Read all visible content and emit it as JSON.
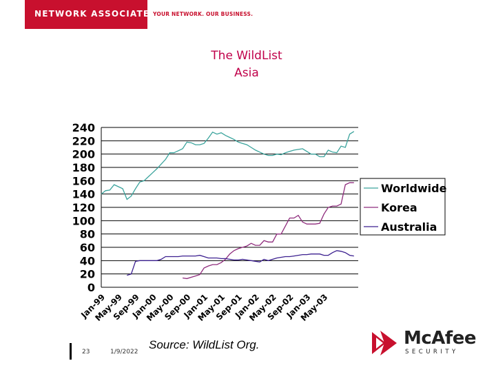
{
  "header": {
    "brand": "NETWORK ASSOCIATES",
    "tagline": "YOUR NETWORK. OUR BUSINESS.",
    "brand_color": "#c8102e"
  },
  "slide": {
    "title_line1": "The WildList",
    "title_line2": "Asia",
    "title_color": "#c0004a"
  },
  "footer": {
    "page_number": "23",
    "date": "1/9/2022",
    "source": "Source: WildList Org.",
    "logo_name": "McAfee",
    "logo_sub": "SECURITY"
  },
  "chart_data": {
    "type": "line",
    "ylim": [
      0,
      240
    ],
    "yticks": [
      0,
      20,
      40,
      60,
      80,
      100,
      120,
      140,
      160,
      180,
      200,
      220,
      240
    ],
    "xlim": [
      "Jan-99",
      "Jan-04"
    ],
    "grid": true,
    "legend_position": "right",
    "x_tick_labels": [
      "Jan-99",
      "May-99",
      "Sep-99",
      "Jan-00",
      "May-00",
      "Sep-00",
      "Jan-01",
      "May-01",
      "Sep-01",
      "Jan-02",
      "May-02",
      "Sep-02",
      "Jan-03",
      "May-03"
    ],
    "series": [
      {
        "name": "Worldwide",
        "color": "#3aa39c",
        "x": [
          "Jan-99",
          "Feb-99",
          "Mar-99",
          "Apr-99",
          "May-99",
          "Jun-99",
          "Jul-99",
          "Aug-99",
          "Sep-99",
          "Oct-99",
          "Nov-99",
          "Dec-99",
          "Jan-00",
          "Feb-00",
          "Mar-00",
          "Apr-00",
          "May-00",
          "Jun-00",
          "Jul-00",
          "Aug-00",
          "Sep-00",
          "Oct-00",
          "Nov-00",
          "Dec-00",
          "Jan-01",
          "Feb-01",
          "Mar-01",
          "Apr-01",
          "May-01",
          "Jun-01",
          "Jul-01",
          "Aug-01",
          "Sep-01",
          "Oct-01",
          "Nov-01",
          "Dec-01",
          "Jan-02",
          "Feb-02",
          "Mar-02",
          "Apr-02",
          "May-02",
          "Jun-02",
          "Jul-02",
          "Aug-02",
          "Sep-02",
          "Oct-02",
          "Nov-02",
          "Dec-02",
          "Jan-03",
          "Feb-03",
          "Mar-03",
          "Apr-03",
          "May-03",
          "Jun-03",
          "Jul-03",
          "Aug-03",
          "Sep-03",
          "Oct-03",
          "Nov-03",
          "Dec-03"
        ],
        "values": [
          140,
          145,
          146,
          154,
          151,
          148,
          132,
          137,
          148,
          158,
          160,
          166,
          172,
          178,
          185,
          192,
          202,
          202,
          205,
          208,
          218,
          217,
          214,
          214,
          216,
          224,
          233,
          230,
          232,
          228,
          225,
          222,
          218,
          216,
          214,
          210,
          206,
          203,
          200,
          198,
          198,
          200,
          199,
          202,
          204,
          206,
          207,
          208,
          204,
          200,
          200,
          196,
          196,
          206,
          203,
          202,
          212,
          210,
          230,
          234
        ]
      },
      {
        "name": "Korea",
        "color": "#8e2b7c",
        "x": [
          "Aug-00",
          "Sep-00",
          "Oct-00",
          "Nov-00",
          "Dec-00",
          "Jan-01",
          "Feb-01",
          "Mar-01",
          "Apr-01",
          "May-01",
          "Jun-01",
          "Jul-01",
          "Aug-01",
          "Sep-01",
          "Oct-01",
          "Nov-01",
          "Dec-01",
          "Jan-02",
          "Feb-02",
          "Mar-02",
          "Apr-02",
          "May-02",
          "Jun-02",
          "Jul-02",
          "Aug-02",
          "Sep-02",
          "Oct-02",
          "Nov-02",
          "Dec-02",
          "Jan-03",
          "Feb-03",
          "Mar-03",
          "Apr-03",
          "May-03",
          "Jun-03",
          "Jul-03",
          "Aug-03",
          "Sep-03",
          "Oct-03",
          "Nov-03",
          "Dec-03"
        ],
        "values": [
          14,
          13,
          15,
          17,
          19,
          29,
          32,
          34,
          34,
          37,
          42,
          50,
          55,
          58,
          60,
          62,
          66,
          63,
          63,
          70,
          68,
          68,
          80,
          80,
          92,
          104,
          104,
          108,
          98,
          95,
          95,
          95,
          96,
          110,
          120,
          122,
          122,
          125,
          154,
          157,
          157
        ]
      },
      {
        "name": "Australia",
        "color": "#3b1f8f",
        "x": [
          "Jul-99",
          "Aug-99",
          "Sep-99",
          "Oct-99",
          "Nov-99",
          "Dec-99",
          "Jan-00",
          "Feb-00",
          "Mar-00",
          "Apr-00",
          "May-00",
          "Jun-00",
          "Jul-00",
          "Aug-00",
          "Sep-00",
          "Oct-00",
          "Nov-00",
          "Dec-00",
          "Jan-01",
          "Feb-01",
          "Mar-01",
          "Apr-01",
          "May-01",
          "Jun-01",
          "Jul-01",
          "Aug-01",
          "Sep-01",
          "Oct-01",
          "Nov-01",
          "Dec-01",
          "Jan-02",
          "Feb-02",
          "Mar-02",
          "Apr-02",
          "May-02",
          "Jun-02",
          "Jul-02",
          "Aug-02",
          "Sep-02",
          "Oct-02",
          "Nov-02",
          "Dec-02",
          "Jan-03",
          "Feb-03",
          "Mar-03",
          "Apr-03",
          "May-03",
          "Jun-03",
          "Jul-03",
          "Aug-03",
          "Sep-03",
          "Oct-03",
          "Nov-03",
          "Dec-03"
        ],
        "values": [
          18,
          20,
          39,
          40,
          40,
          40,
          40,
          40,
          42,
          46,
          46,
          46,
          46,
          47,
          47,
          47,
          47,
          48,
          46,
          44,
          44,
          44,
          43,
          43,
          42,
          41,
          41,
          42,
          41,
          40,
          39,
          38,
          42,
          40,
          42,
          44,
          45,
          46,
          46,
          47,
          48,
          49,
          49,
          50,
          50,
          50,
          48,
          48,
          52,
          55,
          54,
          52,
          48,
          47
        ]
      }
    ]
  }
}
